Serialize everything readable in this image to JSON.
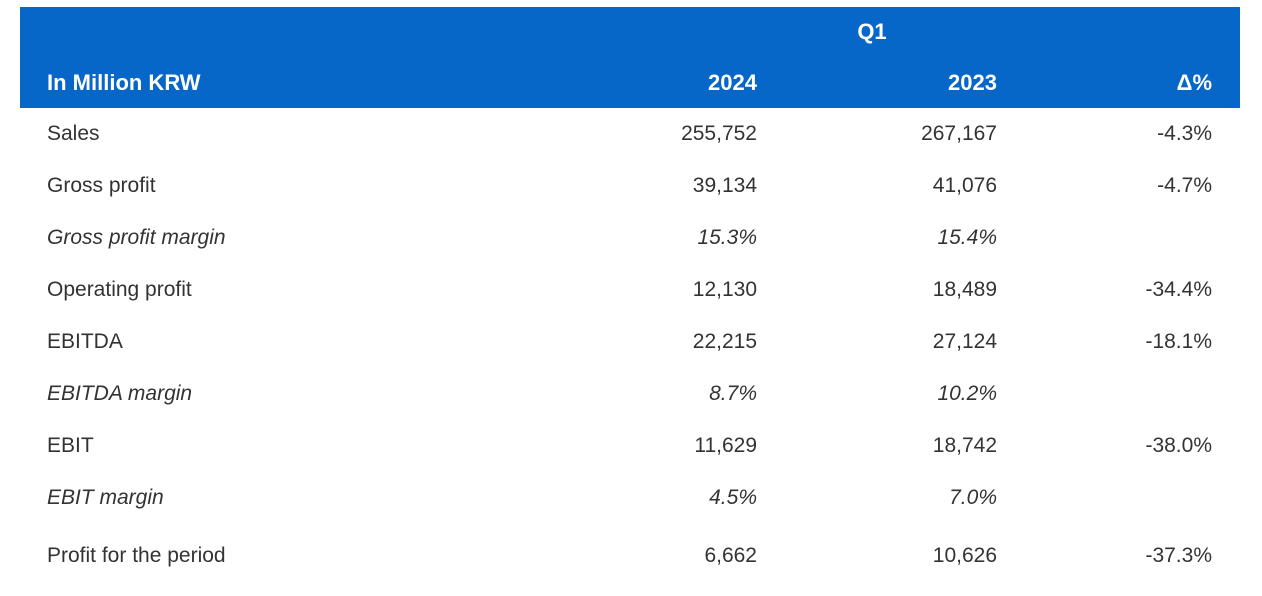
{
  "chart_data": {
    "type": "table",
    "title": "Q1",
    "unit": "In Million KRW",
    "columns": [
      "2024",
      "2023",
      "Δ%"
    ],
    "rows": [
      {
        "label": "Sales",
        "y2024": "255,752",
        "y2023": "267,167",
        "delta": "-4.3%",
        "italic": false,
        "extra_space": false
      },
      {
        "label": "Gross profit",
        "y2024": "39,134",
        "y2023": "41,076",
        "delta": "-4.7%",
        "italic": false,
        "extra_space": false
      },
      {
        "label": "Gross profit margin",
        "y2024": "15.3%",
        "y2023": "15.4%",
        "delta": "",
        "italic": true,
        "extra_space": false
      },
      {
        "label": "Operating profit",
        "y2024": "12,130",
        "y2023": "18,489",
        "delta": "-34.4%",
        "italic": false,
        "extra_space": false
      },
      {
        "label": "EBITDA",
        "y2024": "22,215",
        "y2023": "27,124",
        "delta": "-18.1%",
        "italic": false,
        "extra_space": false
      },
      {
        "label": "EBITDA margin",
        "y2024": "8.7%",
        "y2023": "10.2%",
        "delta": "",
        "italic": true,
        "extra_space": false
      },
      {
        "label": "EBIT",
        "y2024": "11,629",
        "y2023": "18,742",
        "delta": "-38.0%",
        "italic": false,
        "extra_space": false
      },
      {
        "label": "EBIT margin",
        "y2024": "4.5%",
        "y2023": "7.0%",
        "delta": "",
        "italic": true,
        "extra_space": false
      },
      {
        "label": "Profit for the period",
        "y2024": "6,662",
        "y2023": "10,626",
        "delta": "-37.3%",
        "italic": false,
        "extra_space": true
      }
    ]
  },
  "colors": {
    "header_bg": "#0667C9",
    "header_text": "#FFFFFF",
    "body_text": "#333333"
  }
}
